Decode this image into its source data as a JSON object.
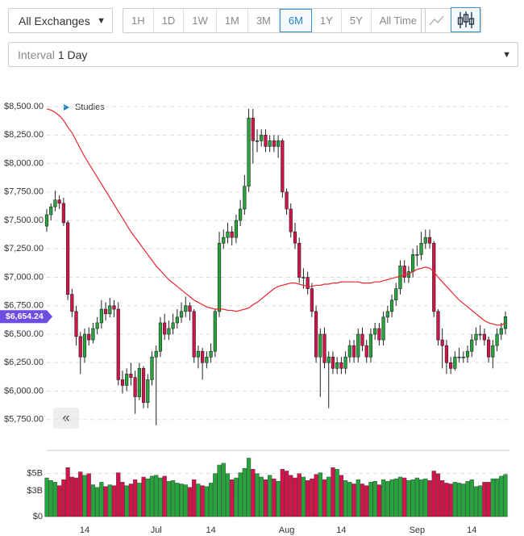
{
  "ui": {
    "exchange": "All Exchanges",
    "ranges": [
      "1H",
      "1D",
      "1W",
      "1M",
      "3M",
      "6M",
      "1Y",
      "5Y",
      "All Time"
    ],
    "active_range_index": 5,
    "interval_label": "Interval",
    "interval_value": "1 Day",
    "studies": "Studies"
  },
  "chart_data": {
    "type": "candlestick",
    "categories": [
      null,
      null,
      null,
      null,
      null,
      null,
      null,
      null,
      null,
      "14",
      null,
      null,
      null,
      null,
      null,
      null,
      null,
      null,
      null,
      null,
      null,
      null,
      null,
      null,
      null,
      null,
      "Jul",
      null,
      null,
      null,
      null,
      null,
      null,
      null,
      null,
      null,
      null,
      null,
      null,
      "14",
      null,
      null,
      null,
      null,
      null,
      null,
      null,
      null,
      null,
      null,
      null,
      null,
      null,
      null,
      null,
      null,
      null,
      "Aug",
      null,
      null,
      null,
      null,
      null,
      null,
      null,
      null,
      null,
      null,
      null,
      null,
      "14",
      null,
      null,
      null,
      null,
      null,
      null,
      null,
      null,
      null,
      null,
      null,
      null,
      null,
      null,
      null,
      null,
      null,
      "Sep",
      null,
      null,
      null,
      null,
      null,
      null,
      null,
      null,
      null,
      null,
      null,
      null,
      "14",
      null,
      null,
      null,
      null,
      null,
      null,
      null,
      null
    ],
    "open": [
      7450,
      7550,
      7620,
      7680,
      7650,
      7480,
      6850,
      6700,
      6480,
      6300,
      6500,
      6450,
      6550,
      6600,
      6720,
      6680,
      6750,
      6720,
      6100,
      6050,
      6150,
      6120,
      5950,
      6200,
      5900,
      6100,
      6300,
      6350,
      6600,
      6500,
      6550,
      6600,
      6650,
      6700,
      6750,
      6700,
      6300,
      6350,
      6250,
      6300,
      6350,
      6700,
      7300,
      7350,
      7400,
      7350,
      7500,
      7600,
      7800,
      8400,
      8200,
      8200,
      8250,
      8150,
      8200,
      8150,
      8200,
      7750,
      7600,
      7400,
      7300,
      7000,
      7000,
      6900,
      6700,
      6300,
      6500,
      6250,
      6300,
      6200,
      6250,
      6200,
      6300,
      6400,
      6300,
      6500,
      6400,
      6300,
      6500,
      6550,
      6450,
      6650,
      6700,
      6800,
      6900,
      7100,
      7000,
      7050,
      7200,
      7200,
      7300,
      7350,
      7300,
      6700,
      6450,
      6400,
      6250,
      6200,
      6300,
      6300,
      6300,
      6350,
      6450,
      6500,
      6500,
      6450,
      6300,
      6400,
      6500,
      6550
    ],
    "high": [
      7600,
      7650,
      7760,
      7720,
      7700,
      7500,
      6900,
      6750,
      6520,
      6550,
      6560,
      6600,
      6650,
      6800,
      6780,
      6820,
      6800,
      6780,
      6180,
      6200,
      6250,
      6180,
      6250,
      6220,
      6150,
      6350,
      6400,
      6650,
      6680,
      6620,
      6680,
      6720,
      6780,
      6830,
      6780,
      6720,
      6400,
      6380,
      6350,
      6420,
      6720,
      7400,
      7420,
      7480,
      7450,
      7550,
      7680,
      7900,
      8480,
      8480,
      8300,
      8300,
      8300,
      8250,
      8250,
      8250,
      8220,
      7780,
      7650,
      7480,
      7350,
      7080,
      7050,
      6950,
      6750,
      6550,
      6560,
      6350,
      6350,
      6300,
      6300,
      6350,
      6450,
      6450,
      6550,
      6560,
      6450,
      6550,
      6600,
      6600,
      6700,
      6750,
      6850,
      6950,
      7150,
      7150,
      7100,
      7250,
      7280,
      7400,
      7420,
      7420,
      7320,
      6720,
      6550,
      6450,
      6300,
      6350,
      6380,
      6350,
      6400,
      6500,
      6560,
      6580,
      6550,
      6480,
      6450,
      6550,
      6600,
      6700
    ],
    "low": [
      7400,
      7500,
      7580,
      7600,
      7450,
      6800,
      6650,
      6400,
      6150,
      6250,
      6400,
      6420,
      6500,
      6550,
      6620,
      6650,
      6650,
      6050,
      5980,
      6000,
      6050,
      5800,
      5920,
      5850,
      5850,
      6050,
      5700,
      6300,
      6450,
      6450,
      6500,
      6550,
      6600,
      6650,
      6620,
      6250,
      6200,
      6100,
      6200,
      6250,
      6300,
      6650,
      7250,
      7300,
      7280,
      7300,
      7450,
      7550,
      7750,
      8000,
      8100,
      8150,
      8100,
      8100,
      8100,
      8050,
      7700,
      7550,
      7350,
      7250,
      6950,
      6900,
      6850,
      6650,
      6250,
      5950,
      6200,
      5850,
      6150,
      6150,
      6150,
      6150,
      6250,
      6250,
      6250,
      6350,
      6250,
      6250,
      6450,
      6400,
      6400,
      6600,
      6650,
      6750,
      6850,
      6950,
      6950,
      7000,
      7100,
      7150,
      7250,
      7250,
      6650,
      6400,
      6200,
      6150,
      6150,
      6180,
      6250,
      6250,
      6250,
      6300,
      6400,
      6450,
      6400,
      6250,
      6200,
      6350,
      6450,
      6500
    ],
    "close": [
      7550,
      7620,
      7680,
      7650,
      7480,
      6850,
      6700,
      6480,
      6300,
      6500,
      6450,
      6550,
      6600,
      6720,
      6680,
      6750,
      6720,
      6100,
      6050,
      6150,
      6120,
      5950,
      6200,
      5900,
      6100,
      6300,
      6350,
      6600,
      6500,
      6550,
      6600,
      6650,
      6700,
      6750,
      6700,
      6300,
      6350,
      6250,
      6300,
      6350,
      6700,
      7300,
      7350,
      7400,
      7350,
      7500,
      7600,
      7800,
      8400,
      8200,
      8200,
      8250,
      8150,
      8200,
      8150,
      8200,
      7750,
      7600,
      7400,
      7300,
      7000,
      7000,
      6900,
      6700,
      6300,
      6500,
      6250,
      6300,
      6200,
      6250,
      6200,
      6300,
      6400,
      6300,
      6500,
      6400,
      6300,
      6500,
      6550,
      6450,
      6650,
      6700,
      6800,
      6900,
      7100,
      7000,
      7050,
      7200,
      7200,
      7300,
      7350,
      7300,
      6700,
      6450,
      6400,
      6250,
      6200,
      6300,
      6300,
      6300,
      6350,
      6450,
      6500,
      6500,
      6450,
      6300,
      6400,
      6500,
      6550,
      6654.24
    ],
    "volume": [
      4.5,
      4.2,
      4.0,
      3.6,
      4.3,
      5.7,
      4.6,
      4.5,
      5.2,
      4.8,
      5.0,
      3.7,
      3.4,
      4.0,
      3.5,
      3.7,
      3.6,
      5.1,
      4.0,
      3.6,
      3.8,
      4.3,
      3.9,
      4.6,
      4.4,
      4.7,
      4.8,
      4.5,
      4.7,
      4.1,
      4.2,
      3.9,
      3.8,
      3.7,
      3.4,
      4.3,
      3.8,
      3.6,
      3.5,
      3.9,
      5.0,
      6.0,
      6.2,
      5.0,
      4.3,
      4.5,
      5.1,
      5.6,
      6.8,
      5.5,
      5.0,
      4.6,
      4.3,
      4.8,
      4.4,
      4.1,
      5.5,
      5.3,
      4.8,
      4.5,
      5.0,
      4.6,
      4.2,
      4.4,
      4.9,
      5.1,
      4.3,
      4.6,
      5.7,
      5.5,
      4.8,
      4.2,
      4.0,
      3.8,
      4.3,
      3.8,
      3.6,
      4.0,
      4.1,
      3.7,
      4.3,
      4.1,
      4.3,
      4.4,
      4.6,
      4.5,
      4.2,
      4.3,
      4.5,
      4.3,
      4.4,
      4.2,
      5.3,
      5.0,
      4.2,
      3.9,
      3.8,
      4.0,
      3.9,
      3.8,
      4.1,
      4.3,
      3.5,
      3.6,
      4.0,
      4.0,
      4.4,
      4.4,
      4.7,
      4.9
    ],
    "moving_average": [
      8480,
      8470,
      8450,
      8420,
      8380,
      8320,
      8270,
      8200,
      8130,
      8060,
      8000,
      7940,
      7880,
      7820,
      7760,
      7700,
      7640,
      7580,
      7520,
      7460,
      7400,
      7350,
      7300,
      7250,
      7200,
      7150,
      7100,
      7060,
      7020,
      6980,
      6950,
      6920,
      6890,
      6860,
      6830,
      6800,
      6780,
      6760,
      6740,
      6730,
      6720,
      6720,
      6720,
      6710,
      6710,
      6700,
      6710,
      6720,
      6730,
      6760,
      6780,
      6810,
      6840,
      6870,
      6900,
      6920,
      6930,
      6940,
      6950,
      6950,
      6940,
      6930,
      6920,
      6920,
      6930,
      6930,
      6940,
      6940,
      6950,
      6950,
      6960,
      6960,
      6960,
      6960,
      6960,
      6950,
      6950,
      6950,
      6960,
      6960,
      6970,
      6980,
      6990,
      7000,
      7010,
      7020,
      7030,
      7050,
      7070,
      7080,
      7090,
      7080,
      7050,
      7000,
      6960,
      6920,
      6880,
      6840,
      6800,
      6770,
      6740,
      6710,
      6680,
      6650,
      6620,
      6600,
      6590,
      6580,
      6580,
      6600
    ],
    "up_color": "#25a53c",
    "down_color": "#d3134a",
    "ma_color": "#e8262b",
    "grid": true,
    "ylim": [
      5500,
      8600
    ],
    "yticks": [
      {
        "value": 5750,
        "label": "$5,750.00"
      },
      {
        "value": 6000,
        "label": "$6,000.00"
      },
      {
        "value": 6250,
        "label": "$6,250.00"
      },
      {
        "value": 6500,
        "label": "$6,500.00"
      },
      {
        "value": 6750,
        "label": "$6,750.00"
      },
      {
        "value": 7000,
        "label": "$7,000.00"
      },
      {
        "value": 7250,
        "label": "$7,250.00"
      },
      {
        "value": 7500,
        "label": "$7,500.00"
      },
      {
        "value": 7750,
        "label": "$7,750.00"
      },
      {
        "value": 8000,
        "label": "$8,000.00"
      },
      {
        "value": 8250,
        "label": "$8,250.00"
      },
      {
        "value": 8500,
        "label": "$8,500.00"
      }
    ],
    "volume_ylim": [
      0,
      7.5
    ],
    "volume_yticks": [
      {
        "value": 0,
        "label": "$0"
      },
      {
        "value": 3,
        "label": "$3B"
      },
      {
        "value": 5,
        "label": "$5B"
      }
    ],
    "last_price": {
      "value": 6654.24,
      "label": "$6,654.24"
    }
  }
}
